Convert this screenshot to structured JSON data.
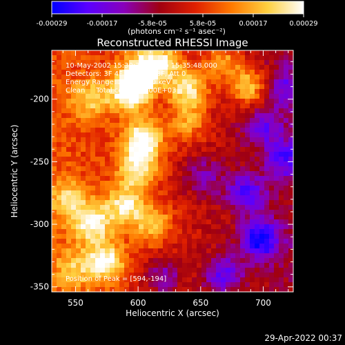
{
  "footer_timestamp": "29-Apr-2022 00:37",
  "colorbar": {
    "tick_labels": [
      "-0.00029",
      "-0.00017",
      "-5.8e-05",
      "5.8e-05",
      "0.00017",
      "0.00029"
    ],
    "units_label": "(photons cm⁻² s⁻¹ asec⁻²)",
    "range": [
      -0.00029,
      0.00029
    ],
    "colormap_stops": [
      "#0000ff",
      "#5a00ff",
      "#8800bb",
      "#a00010",
      "#e02000",
      "#ff7a00",
      "#ffd040",
      "#ffffff"
    ]
  },
  "chart_data": {
    "type": "heatmap",
    "title": "Reconstructed RHESSI Image",
    "xlabel": "Heliocentric X (arcsec)",
    "ylabel": "Heliocentric Y (arcsec)",
    "xlim": [
      531,
      724
    ],
    "ylim": [
      -354,
      -161
    ],
    "x_ticks": [
      550,
      600,
      650,
      700
    ],
    "y_ticks": [
      -200,
      -250,
      -300,
      -350
    ],
    "annotations": [
      "10-May-2002 15:30:32.000 to 15:35:48.000",
      "Detectors: 3F 4F 5F 6F 7F 8F, Att 0",
      "Energy Range: 25.0 - 50.0 keV",
      "Clean     Total counts: 4.00E+03"
    ],
    "peak_label": "Position of Peak = [594,-194]",
    "peak_position": [
      594,
      -194
    ],
    "hot_spots": [
      {
        "x": 594,
        "y": -194,
        "intensity": 1.0
      },
      {
        "x": 603,
        "y": -178,
        "intensity": 0.9
      },
      {
        "x": 640,
        "y": -192,
        "intensity": 0.85
      },
      {
        "x": 688,
        "y": -190,
        "intensity": 0.75
      },
      {
        "x": 563,
        "y": -200,
        "intensity": 0.55
      },
      {
        "x": 604,
        "y": -232,
        "intensity": 0.95
      },
      {
        "x": 600,
        "y": -256,
        "intensity": 0.8
      },
      {
        "x": 590,
        "y": -285,
        "intensity": 0.75
      },
      {
        "x": 563,
        "y": -299,
        "intensity": 0.8
      },
      {
        "x": 544,
        "y": -280,
        "intensity": 0.55
      },
      {
        "x": 612,
        "y": -300,
        "intensity": 0.6
      },
      {
        "x": 574,
        "y": -330,
        "intensity": 0.85
      },
      {
        "x": 548,
        "y": -336,
        "intensity": 0.45
      },
      {
        "x": 640,
        "y": -219,
        "intensity": 0.5
      },
      {
        "x": 668,
        "y": -170,
        "intensity": 0.55
      },
      {
        "x": 620,
        "y": -170,
        "intensity": 0.7
      }
    ],
    "cold_spots": [
      {
        "x": 698,
        "y": -312,
        "intensity": -0.9
      },
      {
        "x": 718,
        "y": -248,
        "intensity": -0.6
      },
      {
        "x": 686,
        "y": -275,
        "intensity": -0.65
      },
      {
        "x": 700,
        "y": -222,
        "intensity": -0.5
      },
      {
        "x": 668,
        "y": -340,
        "intensity": -0.6
      },
      {
        "x": 652,
        "y": -262,
        "intensity": -0.45
      },
      {
        "x": 620,
        "y": -342,
        "intensity": -0.5
      },
      {
        "x": 718,
        "y": -190,
        "intensity": -0.45
      }
    ]
  }
}
